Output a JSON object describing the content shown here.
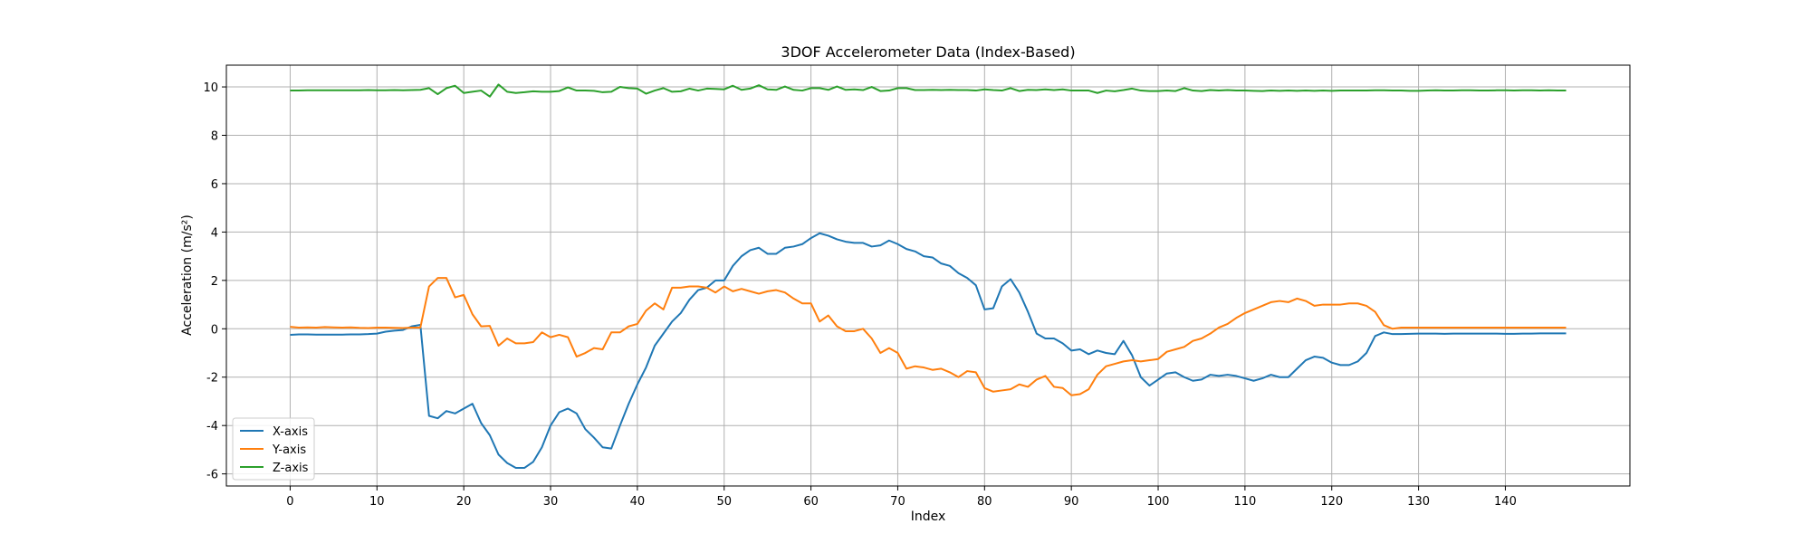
{
  "chart_data": {
    "type": "line",
    "title": "3DOF Accelerometer Data (Index-Based)",
    "xlabel": "Index",
    "ylabel": "Acceleration (m/s²)",
    "xlim": [
      -7.35,
      154.35
    ],
    "ylim": [
      -6.5,
      10.9
    ],
    "xticks": [
      0,
      10,
      20,
      30,
      40,
      50,
      60,
      70,
      80,
      90,
      100,
      110,
      120,
      130,
      140
    ],
    "yticks": [
      -6,
      -4,
      -2,
      0,
      2,
      4,
      6,
      8,
      10
    ],
    "grid": true,
    "legend_position": "lower-left",
    "x_start": 0,
    "x_step": 1,
    "series": [
      {
        "name": "X-axis",
        "color": "#1f77b4",
        "values": [
          -0.25,
          -0.23,
          -0.23,
          -0.24,
          -0.24,
          -0.24,
          -0.24,
          -0.23,
          -0.23,
          -0.22,
          -0.2,
          -0.12,
          -0.08,
          -0.05,
          0.1,
          0.16,
          -3.6,
          -3.7,
          -3.4,
          -3.5,
          -3.3,
          -3.1,
          -3.9,
          -4.4,
          -5.2,
          -5.55,
          -5.75,
          -5.75,
          -5.5,
          -4.9,
          -4.0,
          -3.45,
          -3.3,
          -3.5,
          -4.15,
          -4.5,
          -4.9,
          -4.95,
          -4.0,
          -3.1,
          -2.3,
          -1.6,
          -0.7,
          -0.2,
          0.3,
          0.65,
          1.2,
          1.6,
          1.7,
          2.0,
          2.0,
          2.6,
          3.0,
          3.25,
          3.35,
          3.1,
          3.1,
          3.35,
          3.4,
          3.5,
          3.75,
          3.95,
          3.85,
          3.7,
          3.6,
          3.55,
          3.55,
          3.4,
          3.45,
          3.65,
          3.5,
          3.3,
          3.2,
          3.0,
          2.95,
          2.7,
          2.6,
          2.3,
          2.1,
          1.8,
          0.8,
          0.85,
          1.75,
          2.05,
          1.5,
          0.7,
          -0.2,
          -0.4,
          -0.4,
          -0.6,
          -0.9,
          -0.85,
          -1.05,
          -0.9,
          -1.0,
          -1.05,
          -0.5,
          -1.1,
          -2.0,
          -2.35,
          -2.1,
          -1.85,
          -1.8,
          -2.0,
          -2.15,
          -2.1,
          -1.9,
          -1.95,
          -1.9,
          -1.95,
          -2.05,
          -2.15,
          -2.05,
          -1.9,
          -2.0,
          -2.0,
          -1.65,
          -1.3,
          -1.15,
          -1.2,
          -1.4,
          -1.5,
          -1.5,
          -1.35,
          -1.0,
          -0.3,
          -0.15,
          -0.22,
          -0.22,
          -0.21,
          -0.2,
          -0.2,
          -0.2,
          -0.21,
          -0.2,
          -0.2,
          -0.2,
          -0.2,
          -0.2,
          -0.2,
          -0.21,
          -0.21,
          -0.2,
          -0.2,
          -0.19,
          -0.19,
          -0.19,
          -0.19
        ]
      },
      {
        "name": "Y-axis",
        "color": "#ff7f0e",
        "values": [
          0.08,
          0.05,
          0.06,
          0.05,
          0.07,
          0.06,
          0.05,
          0.06,
          0.04,
          0.03,
          0.05,
          0.05,
          0.04,
          0.03,
          0.05,
          0.05,
          1.75,
          2.1,
          2.1,
          1.3,
          1.4,
          0.6,
          0.1,
          0.12,
          -0.7,
          -0.4,
          -0.6,
          -0.6,
          -0.55,
          -0.15,
          -0.35,
          -0.25,
          -0.35,
          -1.15,
          -1.0,
          -0.8,
          -0.85,
          -0.15,
          -0.15,
          0.1,
          0.2,
          0.75,
          1.05,
          0.8,
          1.7,
          1.7,
          1.75,
          1.75,
          1.7,
          1.5,
          1.75,
          1.55,
          1.65,
          1.55,
          1.45,
          1.55,
          1.6,
          1.5,
          1.25,
          1.05,
          1.05,
          0.3,
          0.55,
          0.1,
          -0.1,
          -0.1,
          0.0,
          -0.4,
          -1.0,
          -0.8,
          -1.0,
          -1.65,
          -1.55,
          -1.6,
          -1.7,
          -1.65,
          -1.8,
          -2.0,
          -1.75,
          -1.8,
          -2.45,
          -2.6,
          -2.55,
          -2.5,
          -2.3,
          -2.4,
          -2.1,
          -1.95,
          -2.4,
          -2.45,
          -2.75,
          -2.7,
          -2.5,
          -1.9,
          -1.55,
          -1.45,
          -1.35,
          -1.3,
          -1.35,
          -1.3,
          -1.25,
          -0.95,
          -0.85,
          -0.75,
          -0.5,
          -0.4,
          -0.2,
          0.05,
          0.2,
          0.45,
          0.65,
          0.8,
          0.95,
          1.1,
          1.15,
          1.1,
          1.25,
          1.15,
          0.95,
          1.0,
          1.0,
          1.0,
          1.05,
          1.05,
          0.95,
          0.7,
          0.15,
          0.0,
          0.05,
          0.05,
          0.05,
          0.05,
          0.05,
          0.05,
          0.05,
          0.05,
          0.05,
          0.05,
          0.05,
          0.05,
          0.05,
          0.05,
          0.05,
          0.05,
          0.05,
          0.05,
          0.05,
          0.05
        ]
      },
      {
        "name": "Z-axis",
        "color": "#2ca02c",
        "values": [
          9.85,
          9.85,
          9.86,
          9.86,
          9.86,
          9.86,
          9.86,
          9.86,
          9.86,
          9.87,
          9.86,
          9.86,
          9.87,
          9.86,
          9.87,
          9.88,
          9.95,
          9.7,
          9.95,
          10.05,
          9.75,
          9.8,
          9.85,
          9.6,
          10.1,
          9.8,
          9.75,
          9.78,
          9.82,
          9.8,
          9.8,
          9.83,
          9.98,
          9.85,
          9.85,
          9.84,
          9.78,
          9.8,
          10.0,
          9.95,
          9.93,
          9.72,
          9.85,
          9.95,
          9.8,
          9.82,
          9.93,
          9.85,
          9.93,
          9.92,
          9.9,
          10.05,
          9.88,
          9.93,
          10.07,
          9.9,
          9.88,
          10.02,
          9.88,
          9.85,
          9.95,
          9.95,
          9.88,
          10.02,
          9.88,
          9.9,
          9.87,
          10.0,
          9.83,
          9.85,
          9.95,
          9.95,
          9.87,
          9.87,
          9.88,
          9.87,
          9.88,
          9.87,
          9.87,
          9.85,
          9.9,
          9.87,
          9.85,
          9.95,
          9.83,
          9.88,
          9.87,
          9.9,
          9.87,
          9.9,
          9.85,
          9.85,
          9.85,
          9.75,
          9.85,
          9.82,
          9.87,
          9.93,
          9.85,
          9.83,
          9.83,
          9.85,
          9.83,
          9.95,
          9.85,
          9.83,
          9.87,
          9.85,
          9.87,
          9.85,
          9.85,
          9.84,
          9.83,
          9.85,
          9.84,
          9.85,
          9.84,
          9.85,
          9.84,
          9.85,
          9.84,
          9.85,
          9.85,
          9.85,
          9.85,
          9.86,
          9.86,
          9.85,
          9.85,
          9.84,
          9.84,
          9.85,
          9.86,
          9.85,
          9.85,
          9.86,
          9.86,
          9.85,
          9.85,
          9.86,
          9.86,
          9.85,
          9.86,
          9.86,
          9.85,
          9.86,
          9.85,
          9.85
        ]
      }
    ]
  }
}
